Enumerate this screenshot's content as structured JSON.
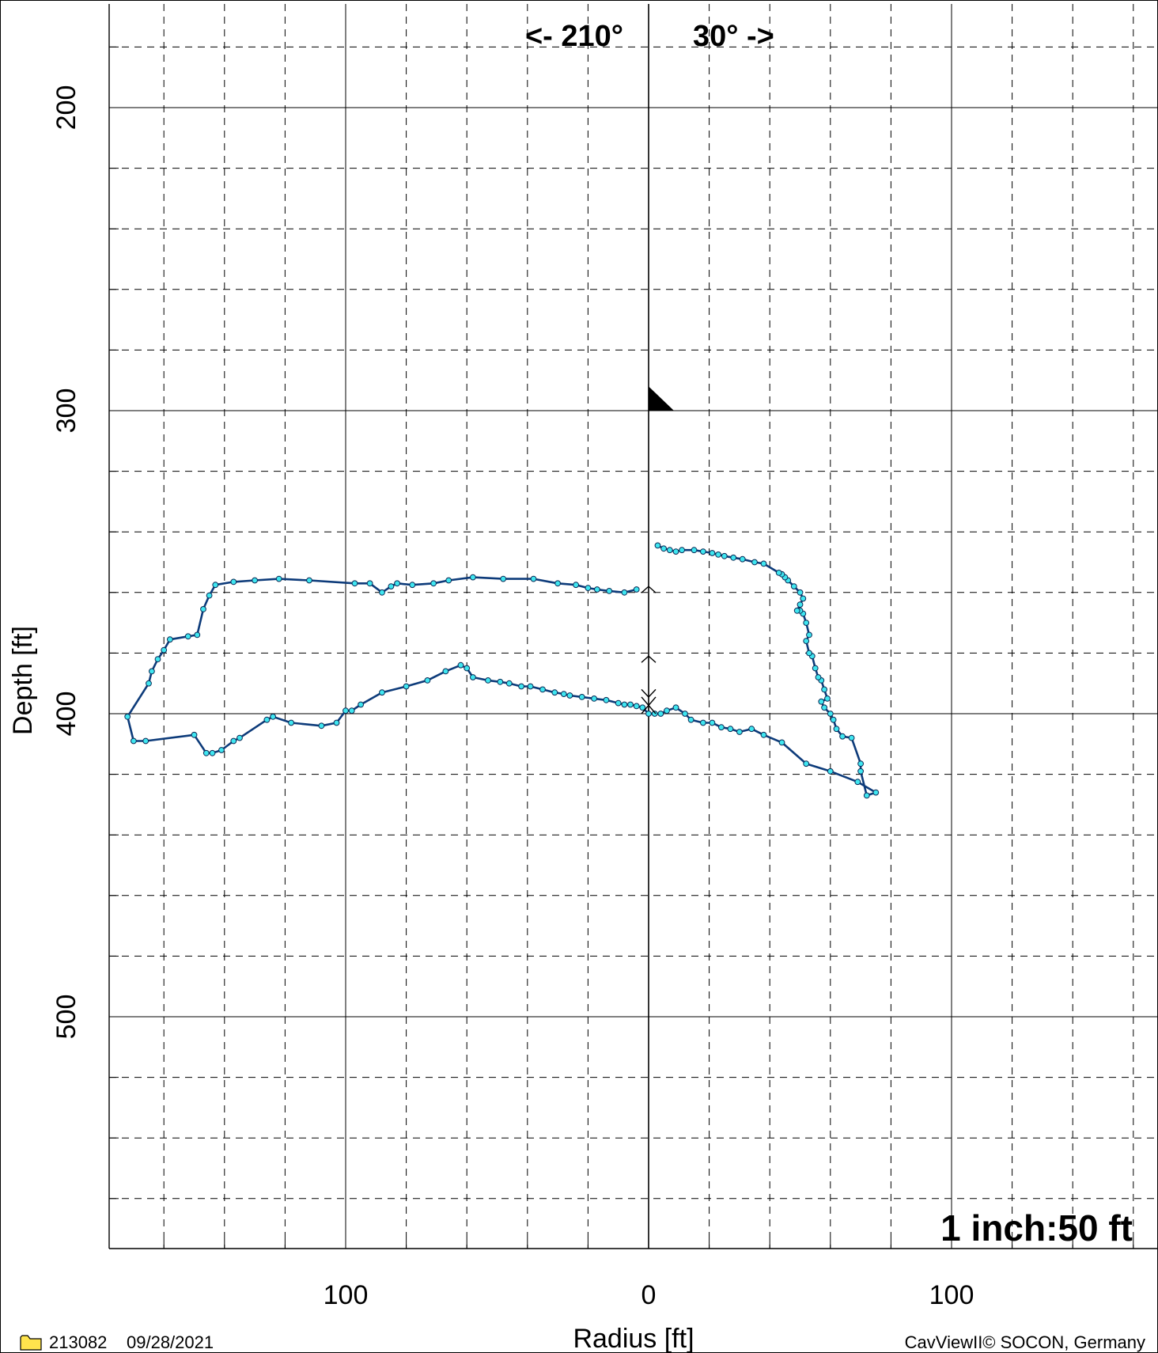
{
  "chart_data": {
    "type": "line",
    "title": "",
    "xlabel": "Radius [ft]",
    "ylabel": "Depth [ft]",
    "xlim": [
      -180,
      180
    ],
    "ylim": [
      600,
      200
    ],
    "x_tick_labels": [
      {
        "value": -100,
        "label": "100"
      },
      {
        "value": 0,
        "label": "0"
      },
      {
        "value": 100,
        "label": "100"
      }
    ],
    "y_tick_labels": [
      {
        "value": 200,
        "label": "200"
      },
      {
        "value": 300,
        "label": "300"
      },
      {
        "value": 400,
        "label": "400"
      },
      {
        "value": 500,
        "label": "500"
      }
    ],
    "direction_left": "<- 210°",
    "direction_right": "30° ->",
    "scale": "1 inch:50 ft",
    "grid": true,
    "line_color": "#0d3b7a",
    "point_color": "#3fe6f0",
    "series": [
      {
        "points": [
          [
            -4,
            359
          ],
          [
            -8,
            360
          ],
          [
            -13,
            359.5
          ],
          [
            -17,
            359
          ],
          [
            -20,
            358.5
          ],
          [
            -24,
            357.5
          ],
          [
            -30,
            357
          ],
          [
            -38,
            355.5
          ],
          [
            -48,
            355.5
          ],
          [
            -58,
            355
          ],
          [
            -66,
            356
          ],
          [
            -71,
            357
          ],
          [
            -78,
            357.5
          ],
          [
            -83,
            357
          ],
          [
            -85,
            358
          ],
          [
            -88,
            360
          ],
          [
            -92,
            357
          ],
          [
            -97,
            357
          ],
          [
            -112,
            356
          ],
          [
            -122,
            355.5
          ],
          [
            -130,
            356
          ],
          [
            -137,
            356.5
          ],
          [
            -143,
            357.5
          ],
          [
            -145,
            361
          ],
          [
            -147,
            365.5
          ],
          [
            -149,
            374
          ],
          [
            -152,
            374.5
          ],
          [
            -158,
            375.5
          ],
          [
            -160,
            379
          ],
          [
            -162,
            382
          ],
          [
            -164,
            386
          ],
          [
            -165,
            390
          ],
          [
            -172,
            401
          ],
          [
            -170,
            409
          ],
          [
            -166,
            409
          ],
          [
            -150,
            407
          ],
          [
            -146,
            413
          ],
          [
            -144,
            413
          ],
          [
            -141,
            412
          ],
          [
            -137,
            409
          ],
          [
            -135,
            408
          ],
          [
            -126,
            402
          ],
          [
            -124,
            401
          ],
          [
            -118,
            403
          ],
          [
            -108,
            404
          ],
          [
            -103,
            403
          ],
          [
            -100,
            399
          ],
          [
            -98,
            399
          ],
          [
            -95,
            397
          ],
          [
            -88,
            393
          ],
          [
            -80,
            391
          ],
          [
            -73,
            389
          ],
          [
            -67,
            386
          ],
          [
            -62,
            384
          ],
          [
            -60,
            385
          ],
          [
            -58,
            388
          ],
          [
            -53,
            389
          ],
          [
            -49,
            389.5
          ],
          [
            -46,
            390
          ],
          [
            -42,
            391
          ],
          [
            -39,
            391
          ],
          [
            -35,
            392
          ],
          [
            -31,
            393
          ],
          [
            -28,
            393.5
          ],
          [
            -26,
            394
          ],
          [
            -22,
            394.5
          ],
          [
            -18,
            395
          ],
          [
            -14,
            395.5
          ],
          [
            -10,
            396.5
          ],
          [
            -8,
            397
          ],
          [
            -6,
            397
          ],
          [
            -4,
            397.5
          ],
          [
            -2,
            398
          ],
          [
            0,
            400
          ],
          [
            2,
            400
          ],
          [
            4,
            400
          ],
          [
            6,
            399
          ],
          [
            9,
            398
          ],
          [
            12,
            400
          ],
          [
            14,
            402
          ],
          [
            18,
            403
          ],
          [
            21,
            403
          ],
          [
            24,
            404.5
          ],
          [
            27,
            405
          ],
          [
            30,
            406
          ],
          [
            34,
            405
          ],
          [
            38,
            407
          ],
          [
            44,
            409.5
          ],
          [
            52,
            416.5
          ],
          [
            60,
            419
          ],
          [
            69,
            422.5
          ],
          [
            75,
            426
          ],
          [
            72,
            427
          ],
          [
            70,
            419
          ],
          [
            70,
            416.5
          ],
          [
            67,
            408
          ],
          [
            64,
            407.5
          ],
          [
            62,
            405
          ],
          [
            61,
            402
          ],
          [
            60,
            400
          ],
          [
            58,
            398
          ],
          [
            57,
            396
          ],
          [
            59,
            395
          ],
          [
            58,
            392
          ],
          [
            57,
            389
          ],
          [
            56,
            388
          ],
          [
            55,
            385
          ],
          [
            54,
            381
          ],
          [
            53,
            380
          ],
          [
            52,
            376
          ],
          [
            53,
            374
          ],
          [
            52,
            370
          ],
          [
            51,
            367
          ],
          [
            50,
            366
          ],
          [
            49,
            366
          ],
          [
            50,
            364
          ],
          [
            51,
            362
          ],
          [
            50,
            360
          ],
          [
            48,
            358
          ],
          [
            46,
            356
          ],
          [
            45,
            355
          ],
          [
            44,
            354
          ],
          [
            43,
            353.5
          ],
          [
            38,
            350.5
          ],
          [
            35,
            350
          ],
          [
            31,
            349
          ],
          [
            28,
            348.5
          ],
          [
            25,
            348
          ],
          [
            23,
            347.5
          ],
          [
            21,
            347
          ],
          [
            18,
            346.5
          ],
          [
            15,
            346
          ],
          [
            11,
            346
          ],
          [
            9,
            346.5
          ],
          [
            7,
            346
          ],
          [
            5,
            345.5
          ],
          [
            3,
            344.5
          ]
        ]
      }
    ]
  },
  "footer": {
    "file_id": "213082",
    "date": "09/28/2021",
    "copyright": "CavViewII© SOCON, Germany"
  }
}
